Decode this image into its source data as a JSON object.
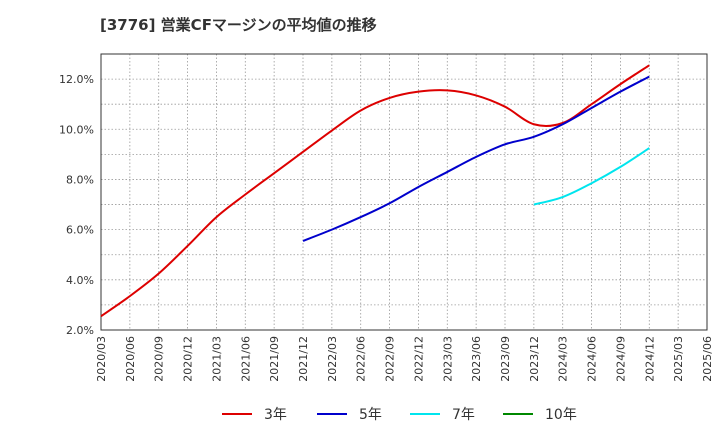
{
  "title": "[3776]  営業CFマージンの平均値の推移",
  "chart_data": {
    "type": "line",
    "title": "[3776]  営業CFマージンの平均値の推移",
    "xlabel": "",
    "ylabel": "",
    "categories": [
      "2020/03",
      "2020/06",
      "2020/09",
      "2020/12",
      "2021/03",
      "2021/06",
      "2021/09",
      "2021/12",
      "2022/03",
      "2022/06",
      "2022/09",
      "2022/12",
      "2023/03",
      "2023/06",
      "2023/09",
      "2023/12",
      "2024/03",
      "2024/06",
      "2024/09",
      "2024/12",
      "2025/03",
      "2025/06"
    ],
    "y_ticks": [
      "2.0%",
      "4.0%",
      "6.0%",
      "8.0%",
      "10.0%",
      "12.0%"
    ],
    "ylim": [
      2.0,
      13.0
    ],
    "grid": true,
    "legend_position": "bottom",
    "series": [
      {
        "name": "3年",
        "color": "#dd0000",
        "values": [
          2.55,
          3.35,
          4.25,
          5.35,
          6.5,
          7.4,
          8.25,
          9.1,
          9.95,
          10.75,
          11.25,
          11.5,
          11.55,
          11.35,
          10.9,
          10.2,
          10.25,
          11.0,
          11.8,
          12.55,
          null,
          null
        ]
      },
      {
        "name": "5年",
        "color": "#0000cc",
        "values": [
          null,
          null,
          null,
          null,
          null,
          null,
          null,
          5.55,
          6.0,
          6.5,
          7.05,
          7.7,
          8.3,
          8.9,
          9.4,
          9.7,
          10.2,
          10.85,
          11.5,
          12.1,
          null,
          null
        ]
      },
      {
        "name": "7年",
        "color": "#00e5ee",
        "values": [
          null,
          null,
          null,
          null,
          null,
          null,
          null,
          null,
          null,
          null,
          null,
          null,
          null,
          null,
          null,
          7.0,
          7.3,
          7.85,
          8.5,
          9.25,
          null,
          null
        ]
      },
      {
        "name": "10年",
        "color": "#008800",
        "values": [
          null,
          null,
          null,
          null,
          null,
          null,
          null,
          null,
          null,
          null,
          null,
          null,
          null,
          null,
          null,
          null,
          null,
          null,
          null,
          null,
          null,
          null
        ]
      }
    ]
  }
}
